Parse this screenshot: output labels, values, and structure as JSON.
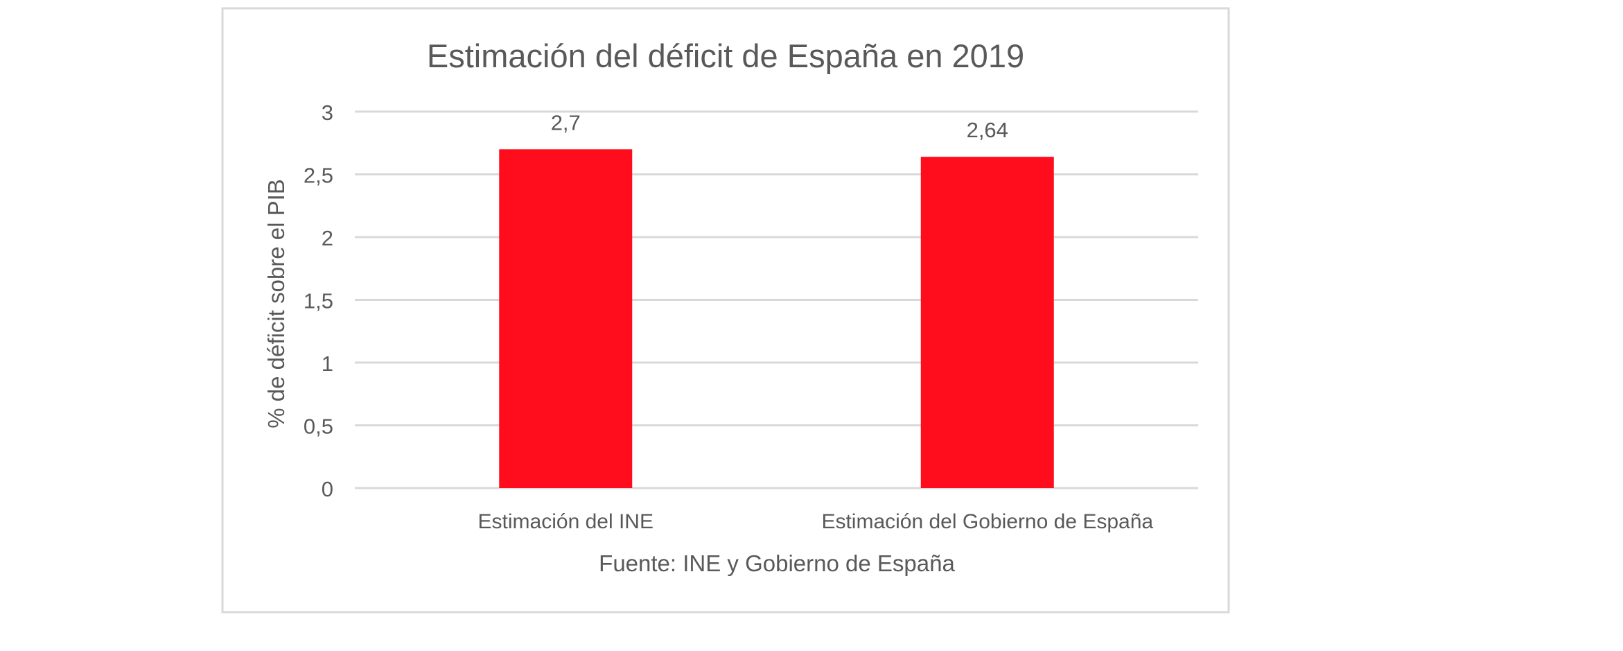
{
  "chart_data": {
    "type": "bar",
    "title": "Estimación del déficit de España en 2019",
    "categories": [
      "Estimación del INE",
      "Estimación del Gobierno de España"
    ],
    "values": [
      2.7,
      2.64
    ],
    "data_labels": [
      "2,7",
      "2,64"
    ],
    "ylabel": "% de déficit sobre el PIB",
    "xlabel": "Fuente: INE y Gobierno de España",
    "ylim": [
      0,
      3
    ],
    "yticks": [
      0,
      0.5,
      1,
      1.5,
      2,
      2.5,
      3
    ],
    "ytick_labels": [
      "0",
      "0,5",
      "1",
      "1,5",
      "2",
      "2,5",
      "3"
    ],
    "grid": true,
    "legend": "none",
    "colors": {
      "bar": "#FF0D1D",
      "grid": "#D9D9D9",
      "text": "#595959",
      "frame": "#D9D9D9"
    }
  }
}
